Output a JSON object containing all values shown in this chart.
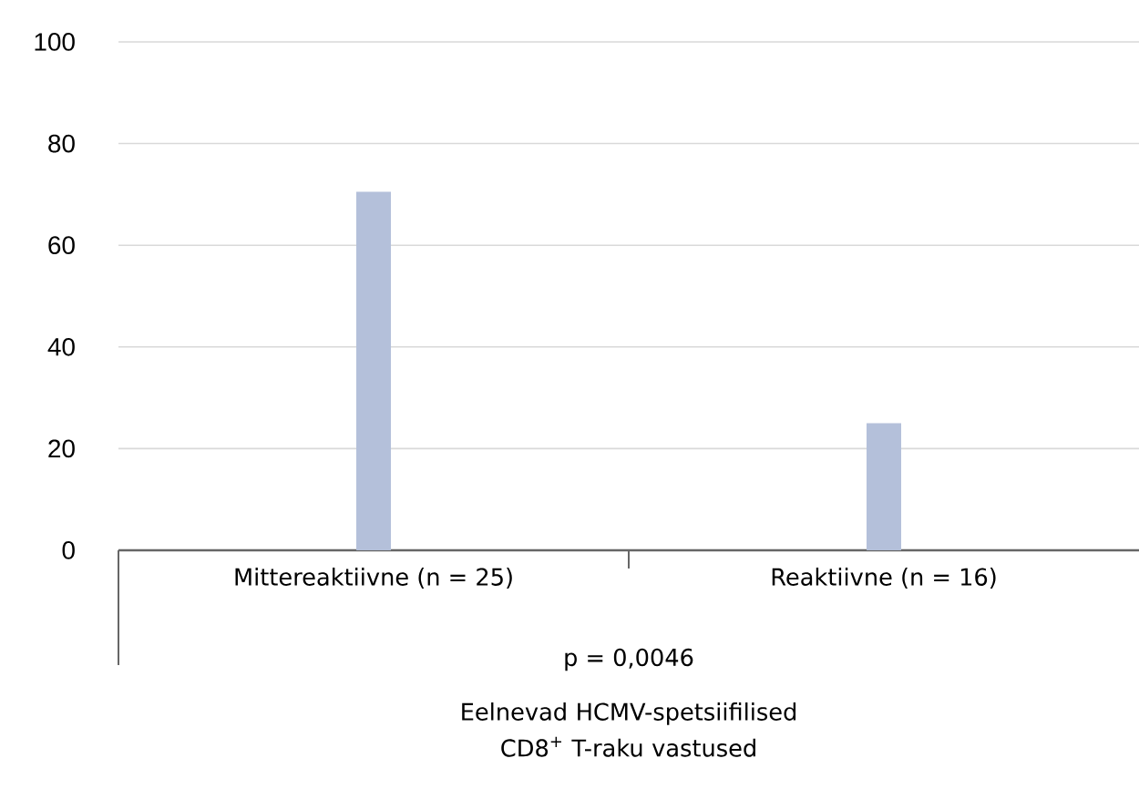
{
  "chart_data": {
    "type": "bar",
    "categories": [
      "Mittereaktiivne (n = 25)",
      "Reaktiivne (n = 16)"
    ],
    "values": [
      70.5,
      25
    ],
    "color": "#b4c0da",
    "ylim": [
      0,
      100
    ],
    "yticks": [
      0,
      20,
      40,
      60,
      80,
      100
    ],
    "grid": "y",
    "xlabel": "Eelnevad HCMV-spetsiifilised CD8$^{+}$ T-raku vastused",
    "annotations": [
      "p = 0,0046"
    ]
  }
}
